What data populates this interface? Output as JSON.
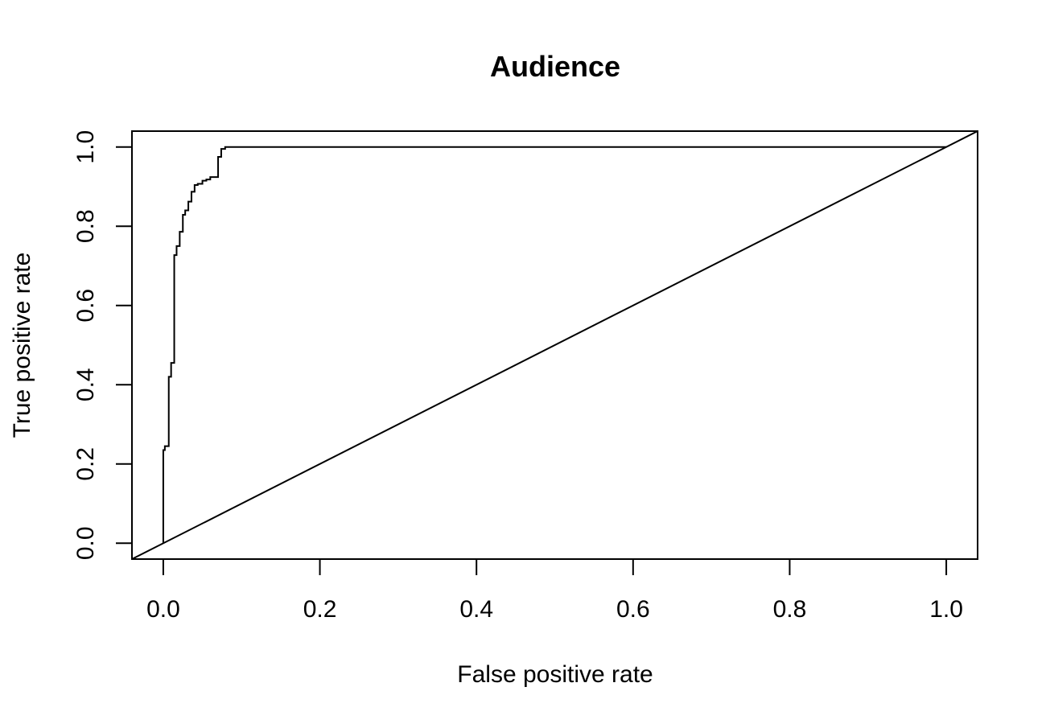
{
  "chart_data": {
    "type": "line",
    "title": "Audience",
    "xlabel": "False positive rate",
    "ylabel": "True positive rate",
    "xlim": [
      -0.04,
      1.04
    ],
    "ylim": [
      -0.04,
      1.04
    ],
    "x_ticks": [
      0.0,
      0.2,
      0.4,
      0.6,
      0.8,
      1.0
    ],
    "x_tick_labels": [
      "0.0",
      "0.2",
      "0.4",
      "0.6",
      "0.8",
      "1.0"
    ],
    "y_ticks": [
      0.0,
      0.2,
      0.4,
      0.6,
      0.8,
      1.0
    ],
    "y_tick_labels": [
      "0.0",
      "0.2",
      "0.4",
      "0.6",
      "0.8",
      "1.0"
    ],
    "grid": false,
    "legend": "none",
    "line_color": "#000000",
    "series": [
      {
        "style": "step",
        "x": [
          0.0,
          0.0,
          0.002,
          0.002,
          0.007,
          0.007,
          0.01,
          0.01,
          0.014,
          0.014,
          0.017,
          0.017,
          0.021,
          0.021,
          0.025,
          0.025,
          0.028,
          0.028,
          0.032,
          0.032,
          0.036,
          0.036,
          0.04,
          0.04,
          0.044,
          0.044,
          0.05,
          0.05,
          0.055,
          0.055,
          0.06,
          0.06,
          0.07,
          0.07,
          0.074,
          0.074,
          0.079,
          0.079,
          1.0
        ],
        "y": [
          0.0,
          0.235,
          0.235,
          0.245,
          0.245,
          0.42,
          0.42,
          0.455,
          0.455,
          0.727,
          0.727,
          0.75,
          0.75,
          0.786,
          0.786,
          0.829,
          0.829,
          0.84,
          0.84,
          0.862,
          0.862,
          0.887,
          0.887,
          0.904,
          0.904,
          0.907,
          0.907,
          0.915,
          0.915,
          0.918,
          0.918,
          0.924,
          0.924,
          0.975,
          0.975,
          0.995,
          0.995,
          1.0,
          1.0
        ]
      },
      {
        "style": "abline",
        "intercept": 0,
        "slope": 1
      }
    ]
  }
}
